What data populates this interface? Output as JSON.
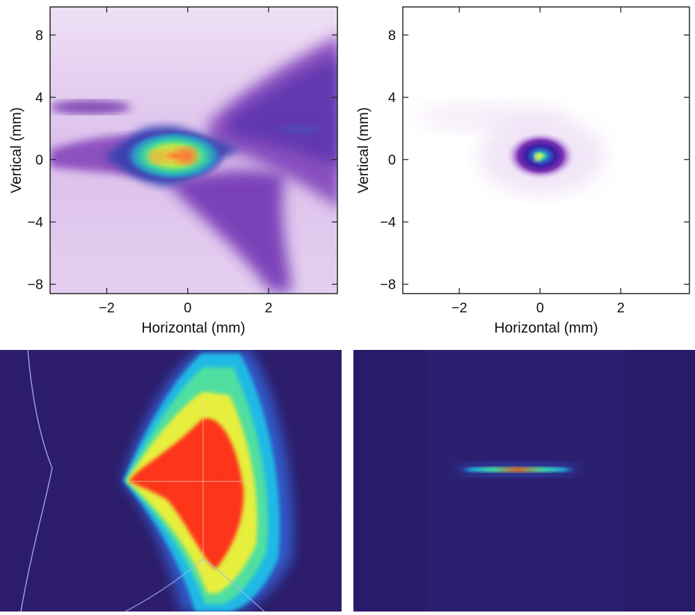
{
  "chart_data": [
    {
      "type": "heatmap",
      "id": "top-left",
      "xlabel": "Horizontal (mm)",
      "ylabel": "Vertical (mm)",
      "xlim": [
        -3.4,
        3.7
      ],
      "ylim": [
        -8.6,
        9.8
      ],
      "xticks": [
        -2,
        0,
        2
      ],
      "yticks": [
        -8,
        -4,
        0,
        4,
        8
      ],
      "xtick_labels": [
        "−2",
        "0",
        "2"
      ],
      "ytick_labels": [
        "−8",
        "−4",
        "0",
        "4",
        "8"
      ],
      "colormap": [
        "#ffffff",
        "#e8d5ef",
        "#b98bd0",
        "#7a2fb4",
        "#4a1fa0",
        "#1f8fc7",
        "#2fd3a6",
        "#d9e93a",
        "#ff7a1a"
      ],
      "features": [
        {
          "name": "core",
          "x": -0.2,
          "y": 0.0,
          "sx": 1.6,
          "sy": 1.4,
          "level": 0.85
        },
        {
          "name": "hot-spot",
          "x": 0.0,
          "y": 0.0,
          "sx": 0.35,
          "sy": 0.3,
          "level": 1.0
        },
        {
          "name": "wing",
          "x": 2.2,
          "y": 3.0,
          "sx": 2.4,
          "sy": 4.0,
          "level": 0.35
        },
        {
          "name": "lower-plume",
          "x": 1.2,
          "y": -4.5,
          "sx": 1.6,
          "sy": 3.6,
          "level": 0.32
        },
        {
          "name": "left-streak",
          "x": -2.6,
          "y": 3.3,
          "sx": 1.4,
          "sy": 0.5,
          "level": 0.3
        }
      ]
    },
    {
      "type": "heatmap",
      "id": "top-right",
      "xlabel": "Horizontal (mm)",
      "ylabel": "Vertical (mm)",
      "xlim": [
        -3.4,
        3.7
      ],
      "ylim": [
        -8.6,
        9.8
      ],
      "xticks": [
        -2,
        0,
        2
      ],
      "yticks": [
        -8,
        -4,
        0,
        4,
        8
      ],
      "xtick_labels": [
        "−2",
        "0",
        "2"
      ],
      "ytick_labels": [
        "−8",
        "−4",
        "0",
        "4",
        "8"
      ],
      "colormap": [
        "#ffffff",
        "#e8d5ef",
        "#b98bd0",
        "#7a2fb4",
        "#4a1fa0",
        "#1f8fc7",
        "#2fd3a6",
        "#d9e93a",
        "#ff7a1a"
      ],
      "features": [
        {
          "name": "spot",
          "x": -0.05,
          "y": 0.1,
          "sx": 0.55,
          "sy": 1.3,
          "level": 1.0
        }
      ]
    },
    {
      "type": "heatmap",
      "id": "bottom-left",
      "colormap": [
        "#2a1a6a",
        "#2f55c4",
        "#1fb9e6",
        "#3fe0a0",
        "#e8f03a",
        "#ff3a14"
      ],
      "features": [
        {
          "name": "wedge",
          "level": 1.0
        }
      ]
    },
    {
      "type": "heatmap",
      "id": "bottom-right",
      "colormap": [
        "#2a1a6a",
        "#2f55c4",
        "#1fb9e6",
        "#3fe0a0",
        "#e8f03a",
        "#ff3a14"
      ],
      "features": [
        {
          "name": "line",
          "level": 1.0
        }
      ]
    }
  ]
}
